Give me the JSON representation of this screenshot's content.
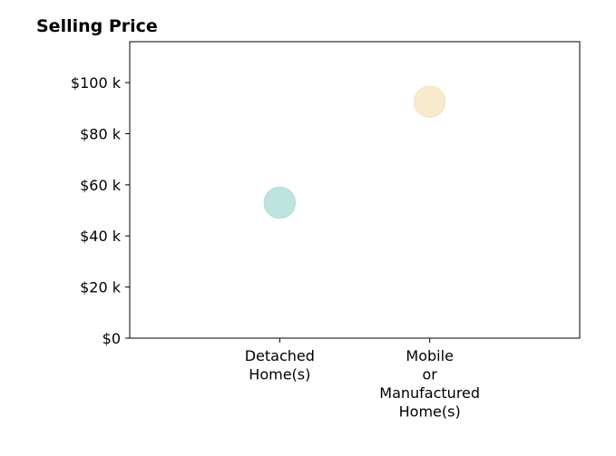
{
  "chart_data": {
    "type": "scatter",
    "title": "Selling Price",
    "xlabel": "",
    "ylabel": "",
    "categories": [
      "Detached\nHome(s)",
      "Mobile\nor\nManufactured\nHome(s)"
    ],
    "x_range": [
      -1,
      2
    ],
    "ylim": [
      0,
      116000
    ],
    "y_ticks": [
      {
        "value": 0,
        "label": "$0"
      },
      {
        "value": 20000,
        "label": "$20 k"
      },
      {
        "value": 40000,
        "label": "$40 k"
      },
      {
        "value": 60000,
        "label": "$60 k"
      },
      {
        "value": 80000,
        "label": "$80 k"
      },
      {
        "value": 100000,
        "label": "$100 k"
      }
    ],
    "points": [
      {
        "category": "Detached\nHome(s)",
        "y": 53000,
        "color": "#b3dfdb"
      },
      {
        "category": "Mobile\nor\nManufactured\nHome(s)",
        "y": 92500,
        "color": "#f7e6c4"
      }
    ],
    "grid": false,
    "legend": "none"
  }
}
